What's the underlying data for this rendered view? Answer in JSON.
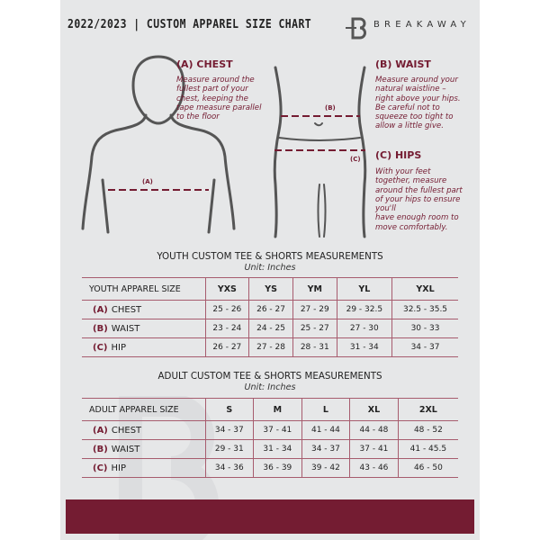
{
  "header": {
    "title": "2022/2023 | CUSTOM APPAREL SIZE CHART",
    "brand": "BREAKAWAY"
  },
  "colors": {
    "accent": "#741c32",
    "page": "#e6e7e8"
  },
  "guide": {
    "chest": {
      "title": "(A) CHEST",
      "marker": "(A)",
      "lines": [
        "Measure around the",
        "fullest part of your",
        "chest, keeping the",
        "tape measure parallel",
        "to the floor"
      ]
    },
    "waist": {
      "title": "(B) WAIST",
      "marker": "(B)",
      "lines": [
        "Measure around your",
        "natural waistline –",
        "right above your hips.",
        "Be careful not to",
        "squeeze too tight to",
        "allow a little give."
      ]
    },
    "hips": {
      "title": "(C) HIPS",
      "marker": "(C)",
      "lines": [
        "With your feet",
        "together, measure",
        "around the fullest part",
        "of your hips to ensure",
        "you'll",
        "have enough room to",
        "move comfortably."
      ]
    }
  },
  "youth": {
    "title": "YOUTH CUSTOM TEE & SHORTS MEASUREMENTS",
    "unit": "Unit: Inches",
    "header": "YOUTH APPAREL SIZE",
    "sizes": [
      "YXS",
      "YS",
      "YM",
      "YL",
      "YXL"
    ],
    "rows": [
      {
        "letter": "(A)",
        "name": "CHEST",
        "values": [
          "25 - 26",
          "26 - 27",
          "27 - 29",
          "29 - 32.5",
          "32.5 - 35.5"
        ]
      },
      {
        "letter": "(B)",
        "name": "WAIST",
        "values": [
          "23 - 24",
          "24 - 25",
          "25 - 27",
          "27 - 30",
          "30 - 33"
        ]
      },
      {
        "letter": "(C)",
        "name": "HIP",
        "values": [
          "26 - 27",
          "27 - 28",
          "28 - 31",
          "31 - 34",
          "34 - 37"
        ]
      }
    ]
  },
  "adult": {
    "title": "ADULT CUSTOM TEE & SHORTS MEASUREMENTS",
    "unit": "Unit: Inches",
    "header": "ADULT APPAREL SIZE",
    "sizes": [
      "S",
      "M",
      "L",
      "XL",
      "2XL"
    ],
    "rows": [
      {
        "letter": "(A)",
        "name": "CHEST",
        "values": [
          "34 - 37",
          "37 - 41",
          "41 - 44",
          "44 - 48",
          "48 - 52"
        ]
      },
      {
        "letter": "(B)",
        "name": "WAIST",
        "values": [
          "29 - 31",
          "31 - 34",
          "34 - 37",
          "37 - 41",
          "41 - 45.5"
        ]
      },
      {
        "letter": "(C)",
        "name": "HIP",
        "values": [
          "34 - 36",
          "36 - 39",
          "39 - 42",
          "43 - 46",
          "46 - 50"
        ]
      }
    ]
  }
}
